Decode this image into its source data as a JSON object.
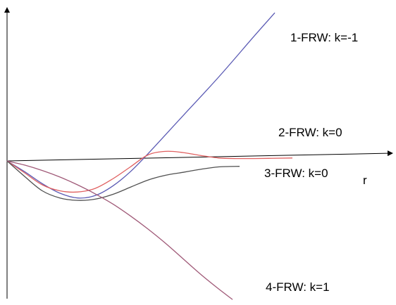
{
  "chart_data": {
    "type": "line",
    "title": "",
    "xlabel": "r",
    "ylabel": "",
    "grid": false,
    "legend": "inline labels at right end of curves",
    "series": [
      {
        "name": "1-FRW: k=-1",
        "color": "#5a5ab4",
        "points": [
          [
            0,
            0
          ],
          [
            0.5,
            -0.9
          ],
          [
            1,
            -1.9
          ],
          [
            1.5,
            -2.7
          ],
          [
            2,
            -3.1
          ],
          [
            2.5,
            -2.9
          ],
          [
            3,
            -2.1
          ],
          [
            3.5,
            -0.9
          ],
          [
            4,
            0.6
          ],
          [
            5,
            3.8
          ],
          [
            6,
            7.0
          ],
          [
            7,
            10.4
          ],
          [
            7.6,
            12.4
          ]
        ]
      },
      {
        "name": "2-FRW: k=0",
        "color": "#e06060",
        "points": [
          [
            0,
            0
          ],
          [
            0.5,
            -1.0
          ],
          [
            1,
            -2.0
          ],
          [
            1.5,
            -2.5
          ],
          [
            2,
            -2.6
          ],
          [
            2.5,
            -2.3
          ],
          [
            3,
            -1.5
          ],
          [
            3.5,
            -0.5
          ],
          [
            4,
            0.5
          ],
          [
            4.5,
            0.8
          ],
          [
            5,
            0.7
          ],
          [
            5.5,
            0.45
          ],
          [
            6,
            0.25
          ],
          [
            6.5,
            0.2
          ],
          [
            7,
            0.2
          ],
          [
            8.1,
            0.25
          ]
        ]
      },
      {
        "name": "3-FRW: k=0",
        "color": "#505050",
        "points": [
          [
            0,
            0
          ],
          [
            0.5,
            -1.3
          ],
          [
            1,
            -2.5
          ],
          [
            1.5,
            -3.1
          ],
          [
            2,
            -3.3
          ],
          [
            2.5,
            -3.2
          ],
          [
            3,
            -2.8
          ],
          [
            3.5,
            -2.2
          ],
          [
            4,
            -1.6
          ],
          [
            4.5,
            -1.2
          ],
          [
            5,
            -0.95
          ],
          [
            5.5,
            -0.7
          ],
          [
            6,
            -0.5
          ],
          [
            6.6,
            -0.45
          ]
        ]
      },
      {
        "name": "4-FRW: k=1",
        "color": "#a05a78",
        "points": [
          [
            0,
            0
          ],
          [
            0.5,
            -0.35
          ],
          [
            1,
            -0.8
          ],
          [
            1.5,
            -1.35
          ],
          [
            2,
            -2.0
          ],
          [
            2.5,
            -2.75
          ],
          [
            3,
            -3.6
          ],
          [
            3.5,
            -4.6
          ],
          [
            4,
            -5.7
          ],
          [
            4.5,
            -6.9
          ],
          [
            5,
            -8.2
          ],
          [
            5.5,
            -9.5
          ],
          [
            6,
            -10.7
          ],
          [
            6.4,
            -11.6
          ]
        ]
      }
    ]
  }
}
